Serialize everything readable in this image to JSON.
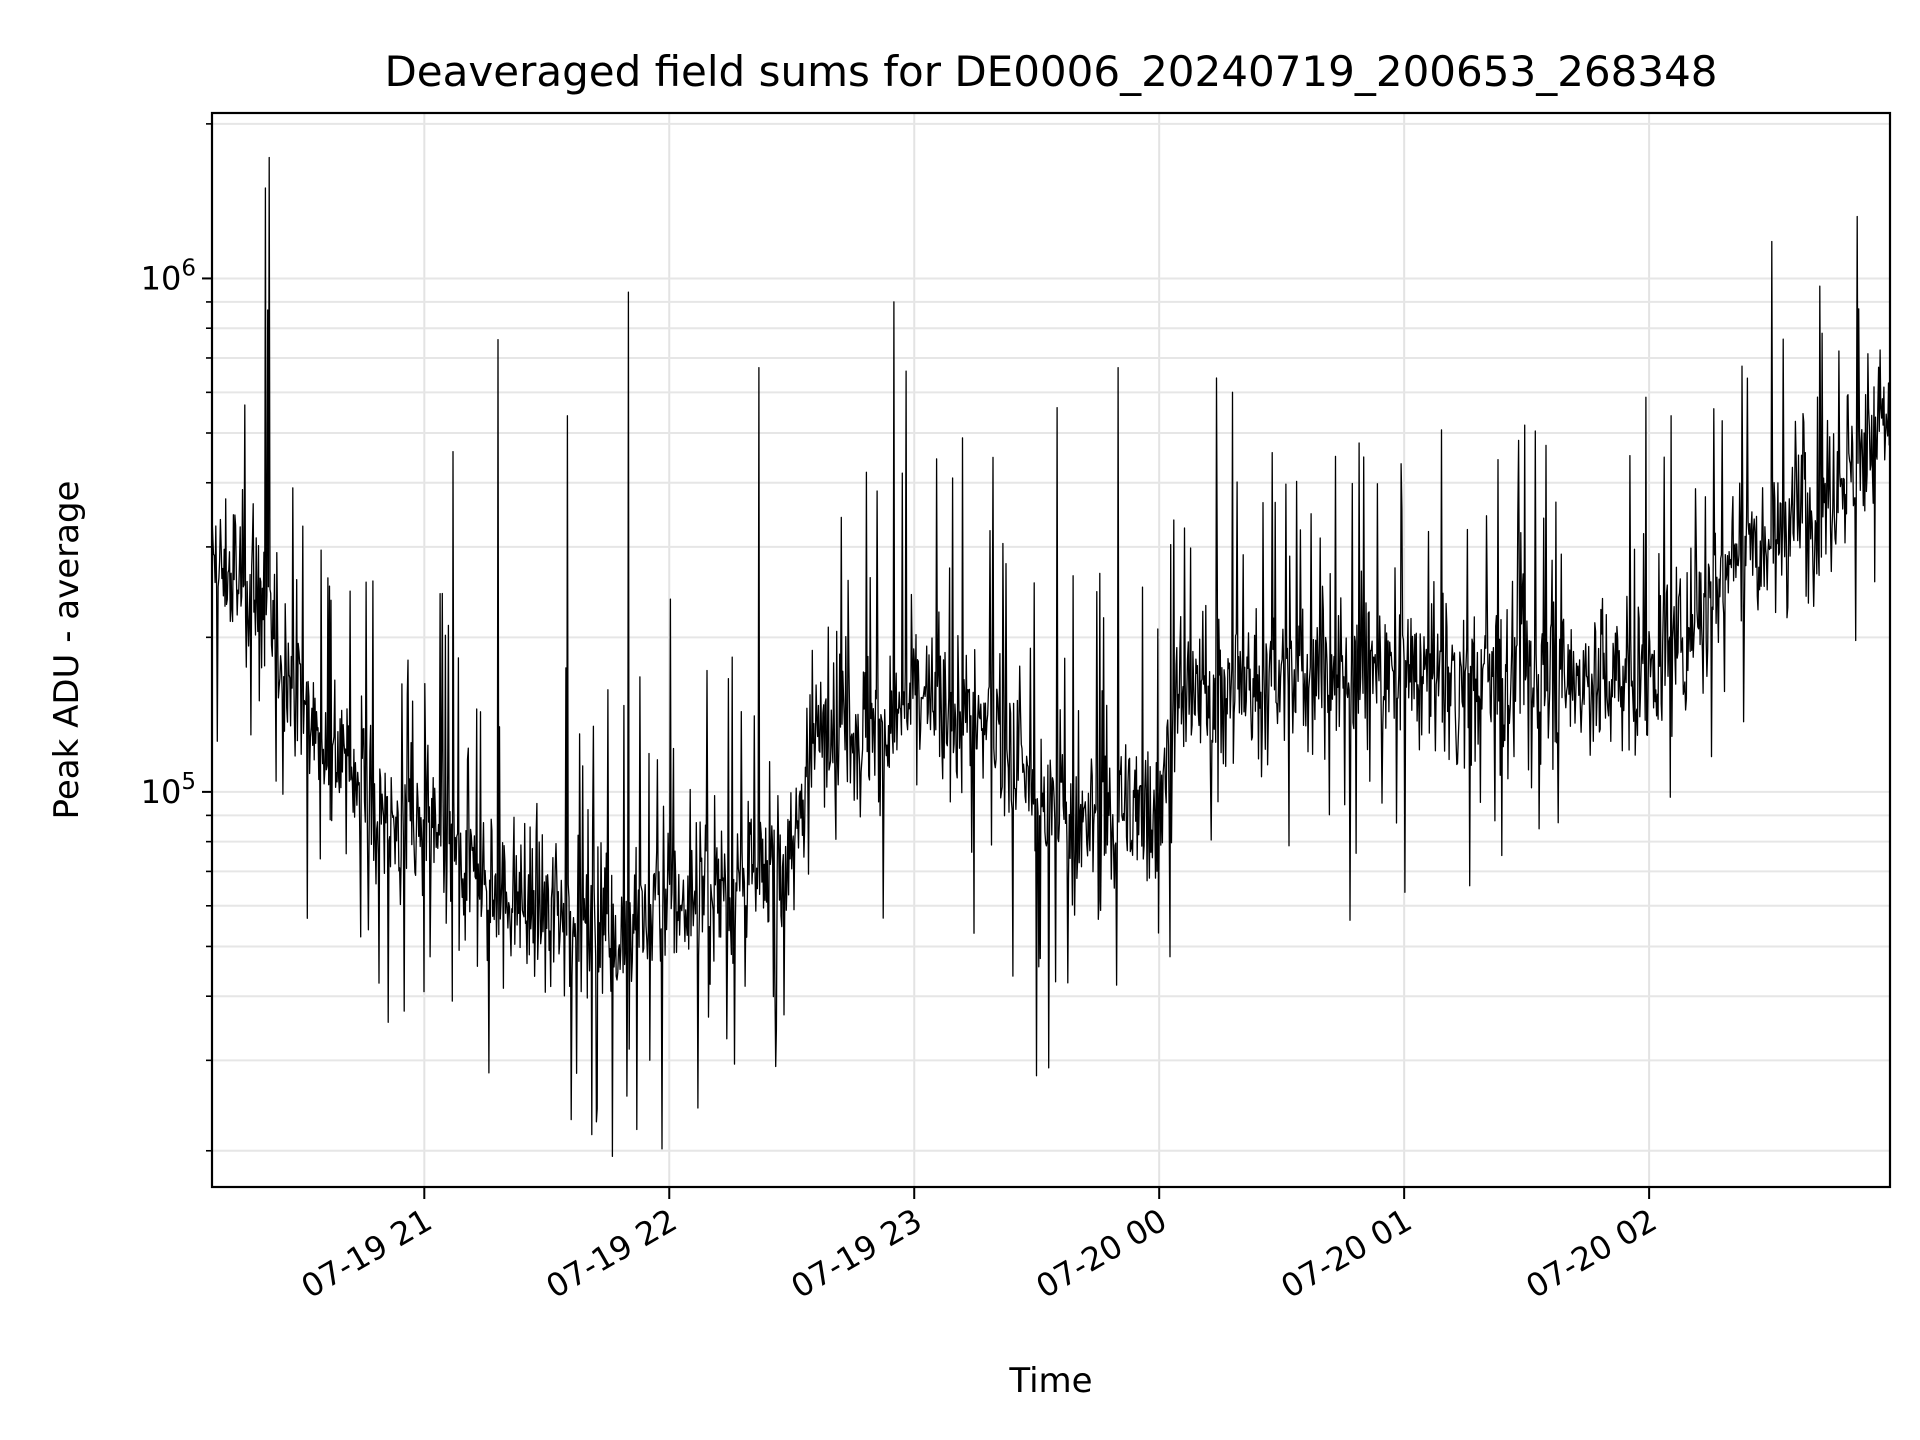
{
  "chart_data": {
    "type": "line",
    "title": "Deaveraged field sums for DE0006_20240719_200653_268348",
    "xlabel": "Time",
    "ylabel": "Peak ADU - average",
    "yscale": "log",
    "xlim": [
      "2024-07-19 20:08",
      "2024-07-20 02:59"
    ],
    "ylim": [
      17000,
      2100000
    ],
    "grid": true,
    "line_color": "#000000",
    "x_ticks": [
      {
        "t": "2024-07-19 21:00",
        "label": "07-19 21"
      },
      {
        "t": "2024-07-19 22:00",
        "label": "07-19 22"
      },
      {
        "t": "2024-07-19 23:00",
        "label": "07-19 23"
      },
      {
        "t": "2024-07-20 00:00",
        "label": "07-20 00"
      },
      {
        "t": "2024-07-20 01:00",
        "label": "07-20 01"
      },
      {
        "t": "2024-07-20 02:00",
        "label": "07-20 02"
      }
    ],
    "y_ticks": [
      {
        "value": 100000,
        "base": "10",
        "exp": "5"
      },
      {
        "value": 1000000,
        "base": "10",
        "exp": "6"
      }
    ],
    "series": [
      {
        "x": [
          "2024-07-19 20:08",
          "2024-07-19 20:15",
          "2024-07-19 20:20",
          "2024-07-19 20:25",
          "2024-07-19 20:30",
          "2024-07-19 20:35",
          "2024-07-19 20:40",
          "2024-07-19 20:45",
          "2024-07-19 20:50",
          "2024-07-19 20:55",
          "2024-07-19 21:00",
          "2024-07-19 21:10",
          "2024-07-19 21:20",
          "2024-07-19 21:30",
          "2024-07-19 21:40",
          "2024-07-19 21:50",
          "2024-07-19 22:00",
          "2024-07-19 22:10",
          "2024-07-19 22:20",
          "2024-07-19 22:30",
          "2024-07-19 22:35",
          "2024-07-19 22:40",
          "2024-07-19 22:50",
          "2024-07-19 23:00",
          "2024-07-19 23:10",
          "2024-07-19 23:20",
          "2024-07-19 23:30",
          "2024-07-19 23:40",
          "2024-07-19 23:50",
          "2024-07-20 00:00",
          "2024-07-20 00:05",
          "2024-07-20 00:15",
          "2024-07-20 00:30",
          "2024-07-20 00:45",
          "2024-07-20 01:00",
          "2024-07-20 01:15",
          "2024-07-20 01:30",
          "2024-07-20 01:45",
          "2024-07-20 02:00",
          "2024-07-20 02:10",
          "2024-07-20 02:20",
          "2024-07-20 02:30",
          "2024-07-20 02:40",
          "2024-07-20 02:50",
          "2024-07-20 02:59"
        ],
        "values": [
          270000,
          260000,
          230000,
          190000,
          150000,
          125000,
          115000,
          105000,
          90000,
          80000,
          85000,
          70000,
          62000,
          60000,
          57000,
          55000,
          60000,
          65000,
          66000,
          72000,
          130000,
          145000,
          130000,
          150000,
          140000,
          135000,
          95000,
          85000,
          90000,
          100000,
          150000,
          160000,
          165000,
          170000,
          175000,
          165000,
          170000,
          165000,
          170000,
          210000,
          290000,
          330000,
          370000,
          430000,
          550000
        ]
      }
    ],
    "spikes": [
      {
        "x": "2024-07-19 20:22",
        "value": 1720000
      },
      {
        "x": "2024-07-19 20:21",
        "value": 1500000
      },
      {
        "x": "2024-07-19 21:18",
        "value": 760000
      },
      {
        "x": "2024-07-19 21:07",
        "value": 460000
      },
      {
        "x": "2024-07-19 21:35",
        "value": 540000
      },
      {
        "x": "2024-07-19 21:50",
        "value": 940000
      },
      {
        "x": "2024-07-19 22:22",
        "value": 670000
      },
      {
        "x": "2024-07-19 22:55",
        "value": 900000
      },
      {
        "x": "2024-07-19 22:58",
        "value": 660000
      },
      {
        "x": "2024-07-19 23:35",
        "value": 560000
      },
      {
        "x": "2024-07-19 23:50",
        "value": 670000
      },
      {
        "x": "2024-07-20 00:14",
        "value": 640000
      },
      {
        "x": "2024-07-20 00:18",
        "value": 600000
      },
      {
        "x": "2024-07-20 02:30",
        "value": 1180000
      },
      {
        "x": "2024-07-20 02:51",
        "value": 1320000
      },
      {
        "x": "2024-07-19 21:41",
        "value": 21500
      },
      {
        "x": "2024-07-19 21:46",
        "value": 19500
      },
      {
        "x": "2024-07-19 21:52",
        "value": 22000
      },
      {
        "x": "2024-07-19 21:36",
        "value": 23000
      },
      {
        "x": "2024-07-19 23:33",
        "value": 29000
      },
      {
        "x": "2024-07-19 23:30",
        "value": 28000
      }
    ]
  }
}
